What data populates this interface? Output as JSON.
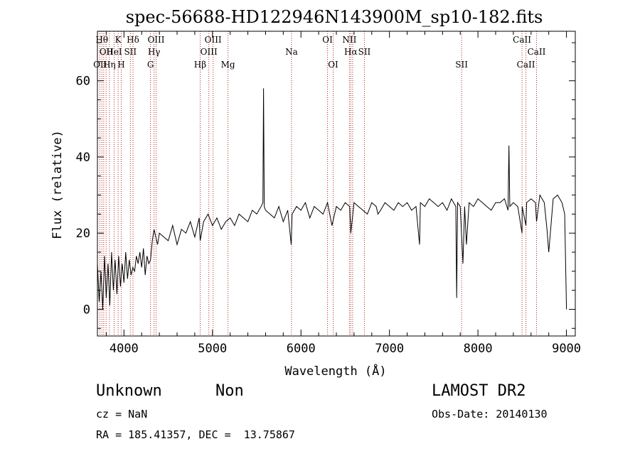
{
  "chart_data": {
    "type": "line",
    "title": "spec-56688-HD122946N143900M_sp10-182.fits",
    "xlabel": "Wavelength (Å)",
    "ylabel": "Flux (relative)",
    "xlim": [
      3700,
      9100
    ],
    "ylim": [
      -7,
      73
    ],
    "x_ticks": [
      4000,
      5000,
      6000,
      7000,
      8000,
      9000
    ],
    "x_tick_labels": [
      "4000",
      "5000",
      "6000",
      "7000",
      "8000",
      "9000"
    ],
    "y_ticks": [
      0,
      20,
      40,
      60
    ],
    "y_tick_labels": [
      "0",
      "20",
      "40",
      "60"
    ],
    "grid": false,
    "series": [
      {
        "x": [
          3700,
          3720,
          3740,
          3760,
          3780,
          3800,
          3820,
          3840,
          3860,
          3880,
          3900,
          3920,
          3940,
          3960,
          3980,
          4000,
          4020,
          4040,
          4060,
          4080,
          4100,
          4120,
          4140,
          4160,
          4180,
          4200,
          4220,
          4240,
          4260,
          4280,
          4300,
          4320,
          4340,
          4360,
          4380,
          4400,
          4450,
          4500,
          4550,
          4600,
          4650,
          4700,
          4750,
          4800,
          4850,
          4861,
          4900,
          4950,
          5000,
          5050,
          5100,
          5150,
          5200,
          5250,
          5300,
          5350,
          5400,
          5450,
          5500,
          5550,
          5570,
          5577,
          5585,
          5600,
          5650,
          5700,
          5750,
          5800,
          5850,
          5890,
          5900,
          5950,
          6000,
          6050,
          6100,
          6150,
          6200,
          6250,
          6300,
          6350,
          6400,
          6450,
          6500,
          6550,
          6563,
          6600,
          6650,
          6700,
          6750,
          6800,
          6850,
          6870,
          6900,
          6950,
          7000,
          7050,
          7100,
          7150,
          7200,
          7250,
          7300,
          7340,
          7350,
          7400,
          7450,
          7500,
          7550,
          7600,
          7650,
          7700,
          7750,
          7760,
          7770,
          7800,
          7830,
          7850,
          7870,
          7900,
          7950,
          8000,
          8050,
          8100,
          8150,
          8200,
          8250,
          8300,
          8340,
          8350,
          8360,
          8400,
          8450,
          8498,
          8500,
          8542,
          8550,
          8600,
          8650,
          8662,
          8700,
          8750,
          8780,
          8800,
          8850,
          8900,
          8950,
          8980,
          9000
        ],
        "y": [
          12,
          2,
          10,
          0,
          14,
          3,
          12,
          1,
          15,
          5,
          13,
          4,
          14,
          6,
          12,
          7,
          15,
          8,
          13,
          9,
          11,
          10,
          14,
          12,
          15,
          11,
          16,
          9,
          14,
          12,
          13,
          18,
          21,
          19,
          17,
          20,
          19,
          18,
          22,
          17,
          21,
          20,
          23,
          19,
          24,
          18,
          23,
          25,
          22,
          24,
          21,
          23,
          24,
          22,
          25,
          24,
          23,
          26,
          25,
          27,
          28,
          58,
          27,
          26,
          25,
          24,
          27,
          23,
          26,
          17,
          25,
          27,
          26,
          28,
          24,
          27,
          26,
          25,
          28,
          22,
          27,
          26,
          28,
          27,
          20,
          28,
          27,
          26,
          25,
          28,
          27,
          25,
          26,
          28,
          27,
          26,
          28,
          27,
          28,
          26,
          27,
          17,
          28,
          27,
          29,
          28,
          27,
          28,
          26,
          29,
          27,
          3,
          28,
          27,
          12,
          27,
          17,
          28,
          27,
          29,
          28,
          27,
          26,
          28,
          28,
          29,
          26,
          43,
          27,
          28,
          27,
          20,
          27,
          22,
          28,
          29,
          28,
          23,
          30,
          28,
          21,
          15,
          29,
          30,
          28,
          25,
          0
        ]
      }
    ],
    "line_labels": [
      {
        "wavelength": 3750,
        "label": "Hθ",
        "row": 1
      },
      {
        "wavelength": 3800,
        "label": "OII",
        "row": 2
      },
      {
        "wavelength": 3730,
        "label": "OII",
        "row": 3
      },
      {
        "wavelength": 3835,
        "label": "Hη",
        "row": 3
      },
      {
        "wavelength": 3889,
        "label": "HeI",
        "row": 2
      },
      {
        "wavelength": 3934,
        "label": "K",
        "row": 1
      },
      {
        "wavelength": 3969,
        "label": "H",
        "row": 3
      },
      {
        "wavelength": 4072,
        "label": "SII",
        "row": 2
      },
      {
        "wavelength": 4102,
        "label": "Hδ",
        "row": 1
      },
      {
        "wavelength": 4300,
        "label": "G",
        "row": 3
      },
      {
        "wavelength": 4340,
        "label": "Hγ",
        "row": 2
      },
      {
        "wavelength": 4363,
        "label": "OIII",
        "row": 1
      },
      {
        "wavelength": 4861,
        "label": "Hβ",
        "row": 3
      },
      {
        "wavelength": 4959,
        "label": "OIII",
        "row": 2
      },
      {
        "wavelength": 5007,
        "label": "OIII",
        "row": 1
      },
      {
        "wavelength": 5175,
        "label": "Mg",
        "row": 3
      },
      {
        "wavelength": 5893,
        "label": "Na",
        "row": 2
      },
      {
        "wavelength": 6300,
        "label": "OI",
        "row": 1
      },
      {
        "wavelength": 6364,
        "label": "OI",
        "row": 3
      },
      {
        "wavelength": 6548,
        "label": "NII",
        "row": 1
      },
      {
        "wavelength": 6563,
        "label": "Hα",
        "row": 2
      },
      {
        "wavelength": 6717,
        "label": "SII",
        "row": 2
      },
      {
        "wavelength": 7815,
        "label": "SII",
        "row": 3
      },
      {
        "wavelength": 8498,
        "label": "CaII",
        "row": 1
      },
      {
        "wavelength": 8542,
        "label": "CaII",
        "row": 3
      },
      {
        "wavelength": 8662,
        "label": "CaII",
        "row": 2
      }
    ],
    "marker_lines": [
      3727,
      3750,
      3771,
      3798,
      3835,
      3889,
      3934,
      3969,
      4072,
      4102,
      4300,
      4340,
      4363,
      4861,
      4959,
      5007,
      5175,
      5893,
      6300,
      6364,
      6548,
      6563,
      6584,
      6717,
      7815,
      8498,
      8542,
      8662
    ],
    "marker_color": "#b22222",
    "line_color": "#000000"
  },
  "info": {
    "class_label": "Unknown",
    "subclass_label": "Non",
    "cz_text": "cz = NaN",
    "coords_text": "RA = 185.41357, DEC =  13.75867",
    "survey_label": "LAMOST DR2",
    "obs_date_text": "Obs-Date: 20140130"
  }
}
